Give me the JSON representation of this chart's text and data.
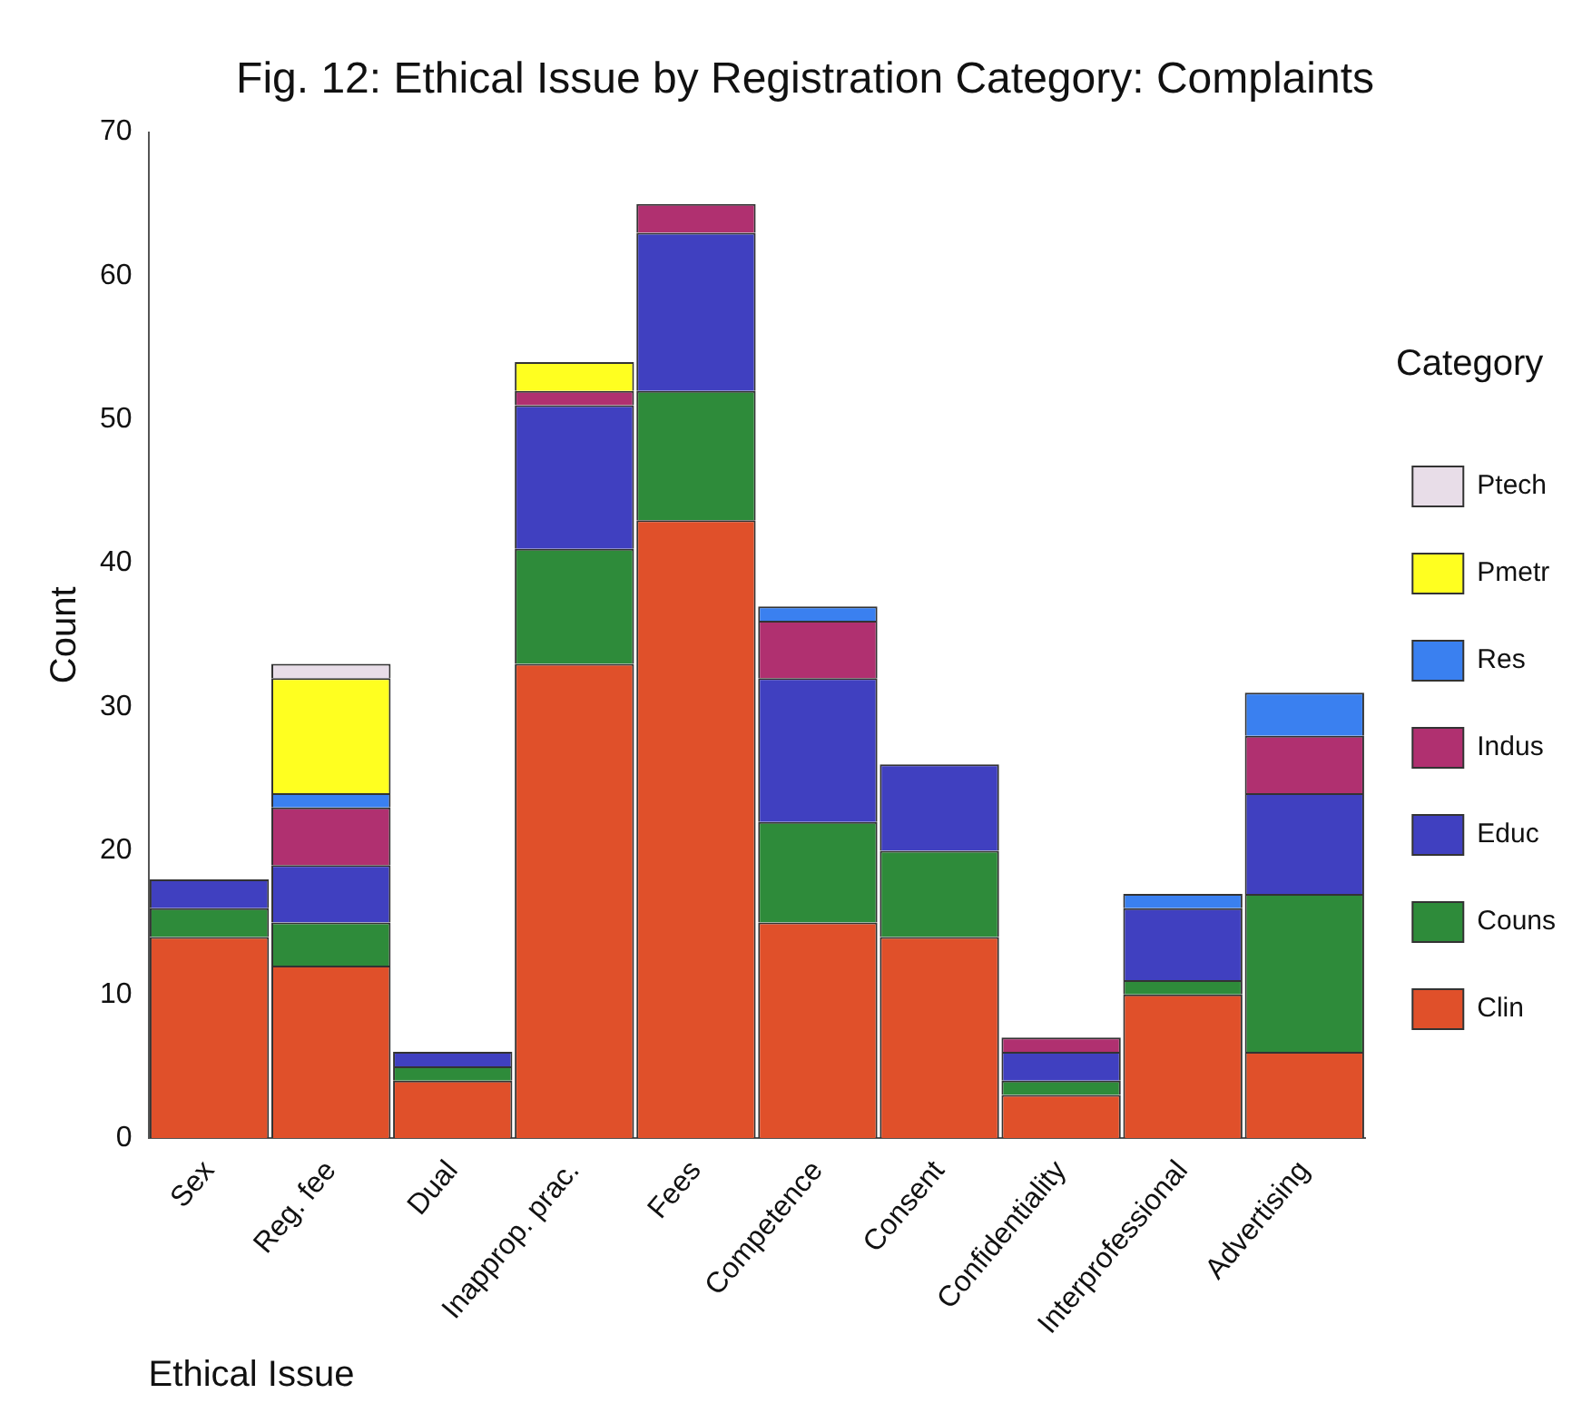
{
  "chart_data": {
    "type": "bar",
    "title": "Fig. 12: Ethical Issue by Registration Category: Complaints",
    "xlabel": "Ethical Issue",
    "ylabel": "Count",
    "legend_title": "Category",
    "legend": "right",
    "stacked": true,
    "categories": [
      "Sex",
      "Reg. fee",
      "Dual",
      "Inapprop. prac.",
      "Fees",
      "Competence",
      "Consent",
      "Confidentiality",
      "Interprofessional",
      "Advertising"
    ],
    "ylim": [
      0,
      70
    ],
    "yticks": [
      0,
      10,
      20,
      30,
      40,
      50,
      60,
      70
    ],
    "series": [
      {
        "name": "Clin",
        "color": "#e0502a",
        "values": [
          14,
          12,
          4,
          33,
          43,
          15,
          14,
          3,
          10,
          6
        ]
      },
      {
        "name": "Couns",
        "color": "#2e8b3a",
        "values": [
          2,
          3,
          1,
          8,
          9,
          7,
          6,
          1,
          1,
          11
        ]
      },
      {
        "name": "Educ",
        "color": "#4040c0",
        "values": [
          2,
          4,
          1,
          10,
          11,
          10,
          6,
          2,
          5,
          7
        ]
      },
      {
        "name": "Indus",
        "color": "#b03070",
        "values": [
          0,
          4,
          0,
          1,
          2,
          4,
          0,
          1,
          0,
          4
        ]
      },
      {
        "name": "Res",
        "color": "#3a80f0",
        "values": [
          0,
          1,
          0,
          0,
          0,
          1,
          0,
          0,
          1,
          3
        ]
      },
      {
        "name": "Pmetr",
        "color": "#ffff20",
        "values": [
          0,
          8,
          0,
          2,
          0,
          0,
          0,
          0,
          0,
          0
        ]
      },
      {
        "name": "Ptech",
        "color": "#e8dde8",
        "values": [
          0,
          1,
          0,
          0,
          0,
          0,
          0,
          0,
          0,
          0
        ]
      }
    ]
  }
}
